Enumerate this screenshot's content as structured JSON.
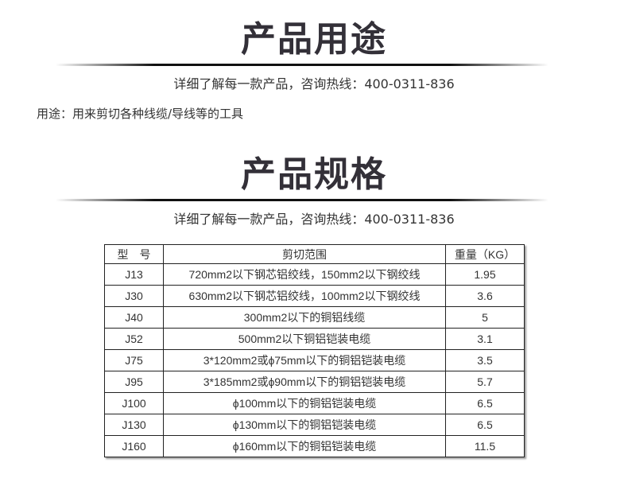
{
  "section1": {
    "title": "产品用途",
    "subtitle": "详细了解每一款产品，咨询热线：400-0311-836"
  },
  "usage": "用途：用来剪切各种线缆/导线等的工具",
  "section2": {
    "title": "产品规格",
    "subtitle": "详细了解每一款产品，咨询热线：400-0311-836"
  },
  "table": {
    "headers": [
      "型　号",
      "剪切范围",
      "重量（KG）"
    ],
    "rows": [
      [
        "J13",
        "720mm2以下钢芯铝绞线，150mm2以下钢绞线",
        "1.95"
      ],
      [
        "J30",
        "630mm2以下钢芯铝绞线，100mm2以下钢绞线",
        "3.6"
      ],
      [
        "J40",
        "300mm2以下的铜铝线缆",
        "5"
      ],
      [
        "J52",
        "500mm2以下铜铝铠装电缆",
        "3.1"
      ],
      [
        "J75",
        "3*120mm2或ϕ75mm以下的铜铝铠装电缆",
        "3.5"
      ],
      [
        "J95",
        "3*185mm2或ϕ90mm以下的铜铝铠装电缆",
        "5.7"
      ],
      [
        "J100",
        "ϕ100mm以下的铜铝铠装电缆",
        "6.5"
      ],
      [
        "J130",
        "ϕ130mm以下的铜铝铠装电缆",
        "6.5"
      ],
      [
        "J160",
        "ϕ160mm以下的铜铝铠装电缆",
        "11.5"
      ]
    ]
  }
}
